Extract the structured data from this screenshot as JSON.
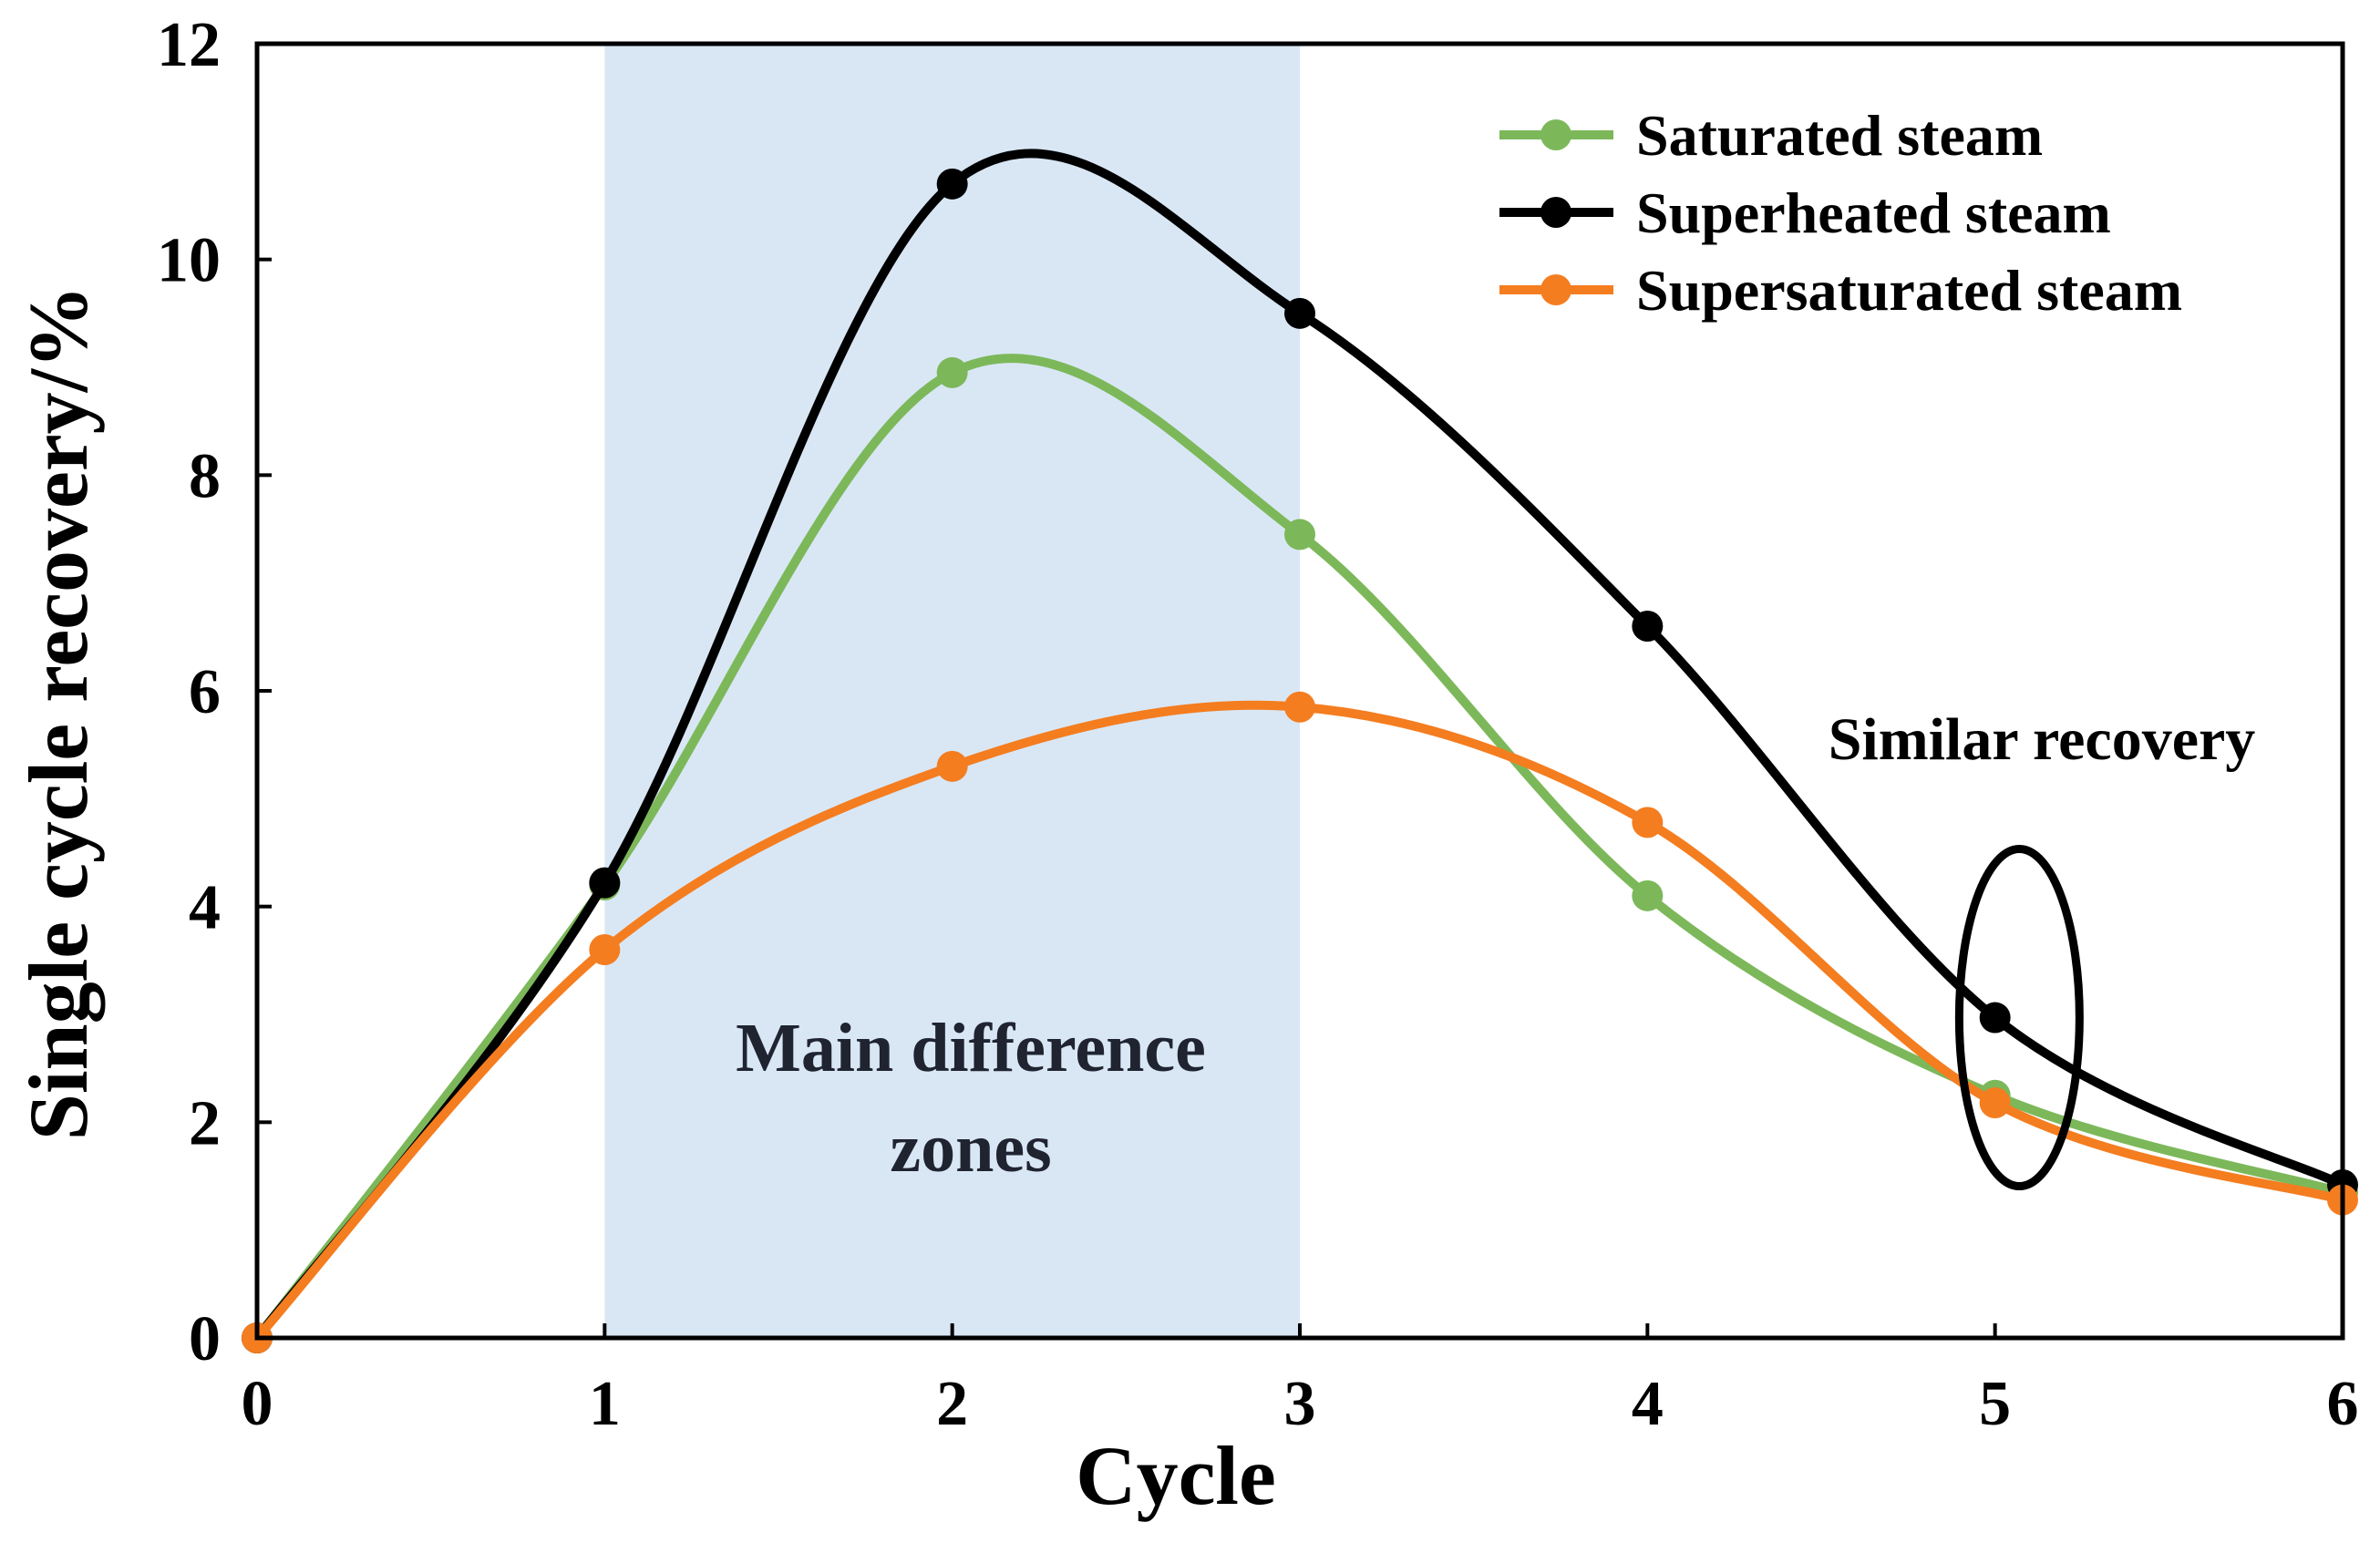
{
  "chart_data": {
    "type": "line",
    "xlabel": "Cycle",
    "ylabel": "Single cycle recovery/%",
    "xlim": [
      0,
      6
    ],
    "ylim": [
      0,
      12
    ],
    "x_ticks": [
      "0",
      "1",
      "2",
      "3",
      "4",
      "5",
      "6"
    ],
    "y_ticks": [
      "0",
      "2",
      "4",
      "6",
      "8",
      "10",
      "12"
    ],
    "grid": false,
    "legend_position": "top-right",
    "x": [
      0,
      1,
      2,
      3,
      4,
      5,
      6
    ],
    "series": [
      {
        "name": "Saturated steam",
        "color": "#7cb85a",
        "values": [
          0,
          4.2,
          8.95,
          7.45,
          4.1,
          2.25,
          1.35
        ]
      },
      {
        "name": "Superheated steam",
        "color": "#000000",
        "values": [
          0,
          4.22,
          10.7,
          9.5,
          6.6,
          2.97,
          1.42
        ]
      },
      {
        "name": "Supersaturated steam",
        "color": "#f47d20",
        "values": [
          0,
          3.6,
          5.3,
          5.85,
          4.78,
          2.18,
          1.28
        ]
      }
    ],
    "shaded_region": {
      "x_range": [
        1,
        3
      ],
      "color": "#d9e7f5"
    },
    "annotations": {
      "main_zone_line1": "Main difference",
      "main_zone_line2": "zones",
      "similar": "Similar recovery"
    },
    "highlight_ellipse": {
      "x": 5.07,
      "y": 2.97
    }
  }
}
